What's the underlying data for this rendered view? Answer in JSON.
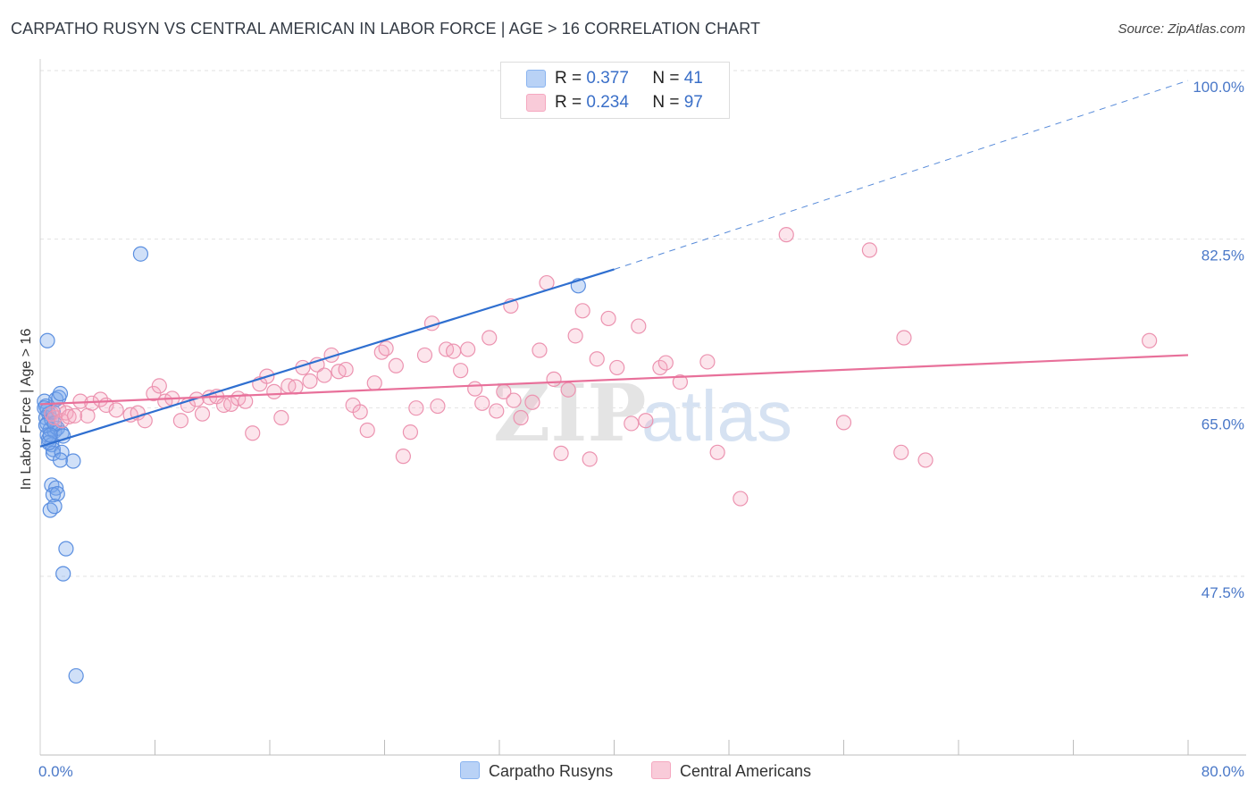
{
  "title": "CARPATHO RUSYN VS CENTRAL AMERICAN IN LABOR FORCE | AGE > 16 CORRELATION CHART",
  "source": "Source: ZipAtlas.com",
  "watermark": {
    "zip": "ZIP",
    "atlas": "atlas"
  },
  "legend": {
    "r_label": "R =",
    "n_label": "N =",
    "rows": [
      {
        "r": "0.377",
        "n": "41",
        "color": "#8ab4f0"
      },
      {
        "r": "0.234",
        "n": "97",
        "color": "#f5a8c0"
      }
    ]
  },
  "bottom_legend": [
    {
      "label": "Carpatho Rusyns",
      "color": "#8ab4f0"
    },
    {
      "label": "Central Americans",
      "color": "#f5a8c0"
    }
  ],
  "chart_data": {
    "type": "scatter",
    "title": "CARPATHO RUSYN VS CENTRAL AMERICAN IN LABOR FORCE | AGE > 16 CORRELATION CHART",
    "xlabel": "",
    "ylabel": "In Labor Force | Age > 16",
    "xlim": [
      0,
      80
    ],
    "ylim": [
      30,
      102
    ],
    "x_tick_labels": [
      {
        "value": 0,
        "label": "0.0%"
      },
      {
        "value": 80,
        "label": "80.0%"
      }
    ],
    "y_ticks": [
      {
        "value": 100,
        "label": "100.0%"
      },
      {
        "value": 82.5,
        "label": "82.5%"
      },
      {
        "value": 65,
        "label": "65.0%"
      },
      {
        "value": 47.5,
        "label": "47.5%"
      }
    ],
    "x_minor_ticks": [
      8,
      16,
      24,
      32,
      40,
      48,
      56,
      64,
      72,
      80
    ],
    "series": [
      {
        "name": "Carpatho Rusyns",
        "color": "#6fa0e8",
        "line_color": "#2f6fd0",
        "r": 0.377,
        "n": 41,
        "trend": {
          "x0": 0,
          "y0": 61.8,
          "x1": 40,
          "y1": 80.2,
          "x_dash_end": 80,
          "y_dash_end": 99.8
        },
        "points": [
          [
            0.3,
            66.5
          ],
          [
            0.4,
            66.0
          ],
          [
            0.5,
            65.6
          ],
          [
            0.6,
            65.2
          ],
          [
            0.4,
            64.8
          ],
          [
            0.5,
            64.2
          ],
          [
            0.7,
            63.6
          ],
          [
            0.5,
            63.0
          ],
          [
            0.6,
            62.6
          ],
          [
            0.8,
            62.0
          ],
          [
            0.9,
            61.5
          ],
          [
            1.0,
            63.4
          ],
          [
            1.2,
            63.7
          ],
          [
            1.5,
            63.2
          ],
          [
            1.6,
            62.9
          ],
          [
            0.8,
            64.6
          ],
          [
            0.9,
            65.4
          ],
          [
            1.1,
            66.7
          ],
          [
            1.3,
            66.9
          ],
          [
            1.4,
            67.3
          ],
          [
            0.9,
            61.1
          ],
          [
            1.5,
            61.2
          ],
          [
            1.4,
            60.4
          ],
          [
            2.3,
            60.3
          ],
          [
            0.5,
            72.8
          ],
          [
            7.0,
            81.8
          ],
          [
            37.5,
            78.5
          ],
          [
            0.8,
            57.8
          ],
          [
            1.1,
            57.5
          ],
          [
            0.9,
            56.8
          ],
          [
            1.2,
            56.9
          ],
          [
            0.7,
            55.2
          ],
          [
            1.0,
            55.6
          ],
          [
            1.8,
            51.2
          ],
          [
            1.6,
            48.6
          ],
          [
            2.5,
            38.0
          ],
          [
            0.3,
            65.8
          ],
          [
            0.4,
            64.0
          ],
          [
            0.6,
            62.2
          ],
          [
            1.0,
            64.2
          ],
          [
            0.7,
            63.0
          ]
        ]
      },
      {
        "name": "Central Americans",
        "color": "#f5a8c0",
        "line_color": "#e8709a",
        "r": 0.234,
        "n": 97,
        "trend": {
          "x0": 0,
          "y0": 66.2,
          "x1": 80,
          "y1": 71.3
        },
        "points": [
          [
            0.8,
            65.2
          ],
          [
            1.0,
            64.8
          ],
          [
            1.3,
            65.6
          ],
          [
            1.5,
            64.5
          ],
          [
            1.8,
            65.3
          ],
          [
            2.0,
            64.9
          ],
          [
            2.4,
            65.0
          ],
          [
            2.8,
            66.5
          ],
          [
            3.3,
            65.0
          ],
          [
            3.6,
            66.3
          ],
          [
            4.2,
            66.7
          ],
          [
            4.6,
            66.1
          ],
          [
            5.3,
            65.6
          ],
          [
            6.3,
            65.1
          ],
          [
            6.8,
            65.3
          ],
          [
            7.3,
            64.5
          ],
          [
            7.9,
            67.3
          ],
          [
            8.3,
            68.1
          ],
          [
            8.7,
            66.5
          ],
          [
            9.2,
            66.8
          ],
          [
            9.8,
            64.5
          ],
          [
            10.3,
            66.1
          ],
          [
            10.9,
            66.7
          ],
          [
            11.3,
            65.2
          ],
          [
            11.8,
            66.9
          ],
          [
            12.3,
            67.0
          ],
          [
            12.8,
            66.1
          ],
          [
            13.3,
            66.2
          ],
          [
            13.8,
            66.8
          ],
          [
            14.3,
            66.5
          ],
          [
            14.8,
            63.2
          ],
          [
            15.3,
            68.3
          ],
          [
            15.8,
            69.1
          ],
          [
            16.3,
            67.5
          ],
          [
            16.8,
            64.8
          ],
          [
            17.3,
            68.1
          ],
          [
            17.8,
            68.0
          ],
          [
            18.3,
            70.0
          ],
          [
            18.8,
            68.6
          ],
          [
            19.3,
            70.3
          ],
          [
            19.8,
            69.2
          ],
          [
            20.3,
            71.3
          ],
          [
            20.8,
            69.6
          ],
          [
            21.3,
            69.8
          ],
          [
            21.8,
            66.1
          ],
          [
            22.3,
            65.4
          ],
          [
            22.8,
            63.5
          ],
          [
            23.3,
            68.4
          ],
          [
            23.8,
            71.6
          ],
          [
            24.1,
            72.0
          ],
          [
            24.8,
            70.2
          ],
          [
            25.3,
            60.8
          ],
          [
            25.8,
            63.3
          ],
          [
            26.2,
            65.8
          ],
          [
            26.8,
            71.3
          ],
          [
            27.3,
            74.6
          ],
          [
            27.7,
            66.0
          ],
          [
            28.3,
            71.9
          ],
          [
            28.8,
            71.7
          ],
          [
            29.3,
            69.7
          ],
          [
            29.8,
            71.9
          ],
          [
            30.3,
            67.8
          ],
          [
            30.8,
            66.3
          ],
          [
            31.3,
            73.1
          ],
          [
            31.8,
            65.5
          ],
          [
            32.3,
            67.5
          ],
          [
            32.8,
            76.4
          ],
          [
            33.0,
            66.6
          ],
          [
            33.5,
            64.8
          ],
          [
            34.3,
            66.4
          ],
          [
            34.8,
            71.8
          ],
          [
            35.3,
            78.8
          ],
          [
            35.8,
            68.8
          ],
          [
            36.3,
            61.1
          ],
          [
            36.8,
            67.7
          ],
          [
            37.3,
            73.3
          ],
          [
            37.8,
            75.9
          ],
          [
            38.3,
            60.5
          ],
          [
            38.8,
            70.9
          ],
          [
            39.6,
            75.1
          ],
          [
            40.2,
            70.0
          ],
          [
            41.2,
            64.2
          ],
          [
            41.7,
            74.3
          ],
          [
            42.2,
            64.5
          ],
          [
            43.2,
            70.0
          ],
          [
            43.6,
            70.5
          ],
          [
            44.6,
            68.5
          ],
          [
            46.5,
            70.6
          ],
          [
            47.2,
            61.2
          ],
          [
            48.8,
            56.4
          ],
          [
            52.0,
            83.8
          ],
          [
            56.0,
            64.3
          ],
          [
            57.8,
            82.2
          ],
          [
            60.0,
            61.2
          ],
          [
            60.2,
            73.1
          ],
          [
            61.7,
            60.4
          ],
          [
            77.3,
            72.8
          ]
        ]
      }
    ],
    "grid": true
  }
}
